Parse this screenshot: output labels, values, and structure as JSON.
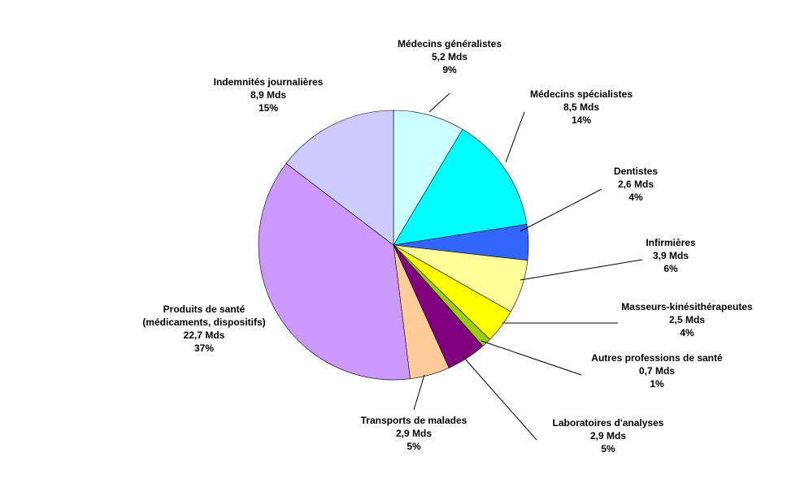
{
  "chart_data": {
    "type": "pie",
    "title": "",
    "slices": [
      {
        "label": "Médecins généralistes",
        "value_text": "5,2 Mds",
        "value": 5.2,
        "percent_text": "9%",
        "color": "#ccffff"
      },
      {
        "label": "Médecins spécialistes",
        "value_text": "8,5 Mds",
        "value": 8.5,
        "percent_text": "14%",
        "color": "#00ffff"
      },
      {
        "label": "Dentistes",
        "value_text": "2,6 Mds",
        "value": 2.6,
        "percent_text": "4%",
        "color": "#3366ff"
      },
      {
        "label": "Infirmières",
        "value_text": "3,9 Mds",
        "value": 3.9,
        "percent_text": "6%",
        "color": "#ffff99"
      },
      {
        "label": "Masseurs-kinésithérapeutes",
        "value_text": "2,5 Mds",
        "value": 2.5,
        "percent_text": "4%",
        "color": "#ffff00"
      },
      {
        "label": "Autres professions de santé",
        "value_text": "0,7 Mds",
        "value": 0.7,
        "percent_text": "1%",
        "color": "#99cc00"
      },
      {
        "label": "Laboratoires d'analyses",
        "value_text": "2,9 Mds",
        "value": 2.9,
        "percent_text": "5%",
        "color": "#800080"
      },
      {
        "label": "Transports de malades",
        "value_text": "2,9 Mds",
        "value": 2.9,
        "percent_text": "5%",
        "color": "#ffcc99"
      },
      {
        "label": "Produits de santé\n(médicaments, dispositifs)",
        "value_text": "22,7 Mds",
        "value": 22.7,
        "percent_text": "37%",
        "color": "#cc99ff"
      },
      {
        "label": "Indemnités journalières",
        "value_text": "8,9 Mds",
        "value": 8.9,
        "percent_text": "15%",
        "color": "#ccccff"
      }
    ]
  }
}
